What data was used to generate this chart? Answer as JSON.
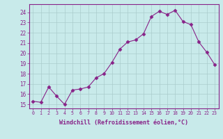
{
  "x": [
    0,
    1,
    2,
    3,
    4,
    5,
    6,
    7,
    8,
    9,
    10,
    11,
    12,
    13,
    14,
    15,
    16,
    17,
    18,
    19,
    20,
    21,
    22,
    23
  ],
  "y": [
    15.3,
    15.2,
    16.7,
    15.8,
    15.0,
    16.4,
    16.5,
    16.7,
    17.6,
    18.0,
    19.1,
    20.4,
    21.1,
    21.3,
    21.9,
    23.6,
    24.1,
    23.8,
    24.2,
    23.1,
    22.8,
    21.1,
    20.1,
    18.9
  ],
  "line_color": "#882288",
  "marker": "D",
  "marker_size": 2.5,
  "bg_color": "#c8eaea",
  "grid_color": "#aacccc",
  "xlabel": "Windchill (Refroidissement éolien,°C)",
  "ylabel_ticks": [
    15,
    16,
    17,
    18,
    19,
    20,
    21,
    22,
    23,
    24
  ],
  "xlim": [
    -0.5,
    23.5
  ],
  "ylim": [
    14.6,
    24.8
  ],
  "xticks": [
    0,
    1,
    2,
    3,
    4,
    5,
    6,
    7,
    8,
    9,
    10,
    11,
    12,
    13,
    14,
    15,
    16,
    17,
    18,
    19,
    20,
    21,
    22,
    23
  ],
  "axes_color": "#882288",
  "font_color": "#882288"
}
